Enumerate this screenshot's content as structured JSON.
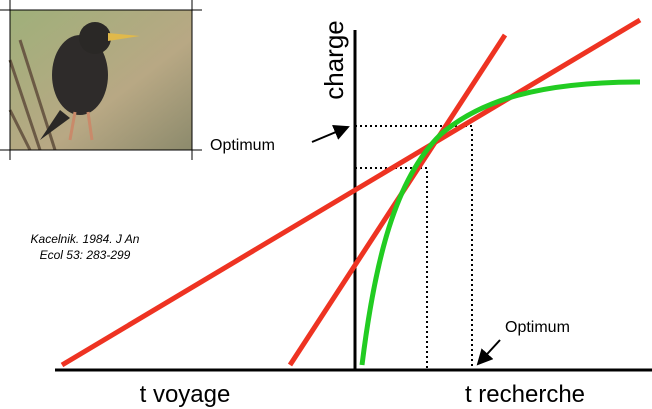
{
  "axis_labels": {
    "y": "charge",
    "x_left": "t voyage",
    "x_right": "t recherche"
  },
  "annotations": [
    "Optimum",
    "Optimum"
  ],
  "citation": [
    "Kacelnik. 1984. J An",
    "Ecol 53: 283-299"
  ]
}
